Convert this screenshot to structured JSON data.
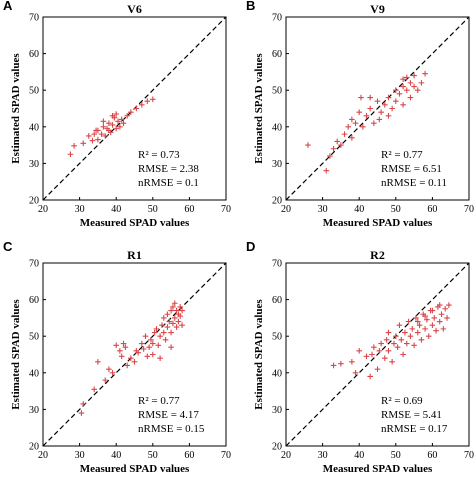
{
  "chart_data": [
    {
      "type": "scatter",
      "panel": "A",
      "title": "V6",
      "xlabel": "Measured SPAD values",
      "ylabel": "Estimated SPAD values",
      "xlim": [
        20,
        70
      ],
      "ylim": [
        20,
        70
      ],
      "xticks": [
        "20",
        "30",
        "40",
        "50",
        "60",
        "70"
      ],
      "yticks": [
        "20",
        "30",
        "40",
        "50",
        "60",
        "70"
      ],
      "reference_line": "1:1 dashed",
      "stats": {
        "r2": "R² = 0.73",
        "rmse": "RMSE = 2.38",
        "nrmse": "nRMSE = 0.1"
      },
      "marker_color": "#d9474a",
      "points": [
        [
          27.5,
          32.5
        ],
        [
          28.5,
          34.8
        ],
        [
          31.0,
          35.5
        ],
        [
          32.5,
          37.5
        ],
        [
          33.5,
          36.2
        ],
        [
          34.0,
          38.0
        ],
        [
          35.0,
          36.5
        ],
        [
          35.0,
          39.0
        ],
        [
          36.0,
          38.0
        ],
        [
          36.5,
          40.0
        ],
        [
          37.0,
          37.5
        ],
        [
          37.5,
          39.5
        ],
        [
          38.0,
          41.0
        ],
        [
          38.5,
          38.5
        ],
        [
          39.0,
          40.5
        ],
        [
          39.5,
          42.5
        ],
        [
          40.0,
          39.5
        ],
        [
          40.0,
          43.5
        ],
        [
          40.5,
          41.5
        ],
        [
          41.0,
          40.0
        ],
        [
          41.5,
          42.0
        ],
        [
          42.0,
          41.0
        ],
        [
          43.0,
          43.0
        ],
        [
          44.0,
          44.0
        ],
        [
          45.5,
          45.0
        ],
        [
          47.0,
          46.0
        ],
        [
          48.5,
          47.0
        ],
        [
          50.0,
          47.5
        ],
        [
          34.5,
          39.0
        ],
        [
          36.5,
          41.5
        ],
        [
          38.0,
          39.0
        ],
        [
          39.0,
          43.0
        ]
      ]
    },
    {
      "type": "scatter",
      "panel": "B",
      "title": "V9",
      "xlabel": "Measured SPAD values",
      "ylabel": "Estimated SPAD values",
      "xlim": [
        20,
        70
      ],
      "ylim": [
        20,
        70
      ],
      "xticks": [
        "20",
        "30",
        "40",
        "50",
        "60",
        "70"
      ],
      "yticks": [
        "20",
        "30",
        "40",
        "50",
        "60",
        "70"
      ],
      "reference_line": "1:1 dashed",
      "stats": {
        "r2": "R² = 0.77",
        "rmse": "RMSE = 6.51",
        "nrmse": "nRMSE = 0.11"
      },
      "marker_color": "#d9474a",
      "points": [
        [
          26.0,
          35.0
        ],
        [
          31.0,
          28.0
        ],
        [
          32.0,
          32.0
        ],
        [
          33.0,
          34.0
        ],
        [
          34.0,
          36.0
        ],
        [
          35.0,
          35.0
        ],
        [
          36.0,
          38.0
        ],
        [
          37.0,
          40.0
        ],
        [
          38.0,
          37.0
        ],
        [
          38.0,
          42.0
        ],
        [
          39.0,
          41.0
        ],
        [
          40.0,
          44.0
        ],
        [
          40.5,
          48.0
        ],
        [
          41.0,
          40.0
        ],
        [
          42.0,
          43.0
        ],
        [
          43.0,
          45.0
        ],
        [
          43.0,
          48.0
        ],
        [
          44.0,
          41.0
        ],
        [
          45.0,
          47.0
        ],
        [
          45.5,
          42.0
        ],
        [
          46.0,
          44.0
        ],
        [
          47.0,
          46.0
        ],
        [
          48.0,
          43.0
        ],
        [
          48.0,
          48.0
        ],
        [
          49.0,
          45.0
        ],
        [
          50.0,
          47.0
        ],
        [
          50.0,
          50.0
        ],
        [
          51.0,
          49.0
        ],
        [
          52.0,
          46.0
        ],
        [
          52.0,
          51.0
        ],
        [
          53.0,
          50.0
        ],
        [
          53.0,
          53.5
        ],
        [
          54.0,
          48.0
        ],
        [
          54.0,
          52.0
        ],
        [
          55.0,
          51.0
        ],
        [
          55.0,
          54.0
        ],
        [
          56.0,
          50.0
        ],
        [
          57.0,
          52.0
        ],
        [
          58.0,
          54.5
        ],
        [
          52.0,
          53.0
        ]
      ]
    },
    {
      "type": "scatter",
      "panel": "C",
      "title": "R1",
      "xlabel": "Measured SPAD values",
      "ylabel": "Estimated SPAD values",
      "xlim": [
        20,
        70
      ],
      "ylim": [
        20,
        70
      ],
      "xticks": [
        "20",
        "30",
        "40",
        "50",
        "60",
        "70"
      ],
      "yticks": [
        "20",
        "30",
        "40",
        "50",
        "60",
        "70"
      ],
      "reference_line": "1:1 dashed",
      "stats": {
        "r2": "R² = 0.77",
        "rmse": "RMSE = 4.17",
        "nrmse": "nRMSE = 0.15"
      },
      "marker_color": "#d9474a",
      "points": [
        [
          30.5,
          29.0
        ],
        [
          31.0,
          31.5
        ],
        [
          34.0,
          35.5
        ],
        [
          35.0,
          43.0
        ],
        [
          37.0,
          38.0
        ],
        [
          38.0,
          41.0
        ],
        [
          39.0,
          40.0
        ],
        [
          40.0,
          47.5
        ],
        [
          41.0,
          46.0
        ],
        [
          41.5,
          44.5
        ],
        [
          42.0,
          48.0
        ],
        [
          42.5,
          47.0
        ],
        [
          43.0,
          42.0
        ],
        [
          44.0,
          44.0
        ],
        [
          45.0,
          43.0
        ],
        [
          45.5,
          46.0
        ],
        [
          46.0,
          45.5
        ],
        [
          47.0,
          48.0
        ],
        [
          47.5,
          46.5
        ],
        [
          48.0,
          50.0
        ],
        [
          48.5,
          44.5
        ],
        [
          49.0,
          47.0
        ],
        [
          49.5,
          49.0
        ],
        [
          50.0,
          48.0
        ],
        [
          50.5,
          51.0
        ],
        [
          51.0,
          52.0
        ],
        [
          51.5,
          47.5
        ],
        [
          52.0,
          50.0
        ],
        [
          52.5,
          53.0
        ],
        [
          53.0,
          51.0
        ],
        [
          53.0,
          55.0
        ],
        [
          53.5,
          49.0
        ],
        [
          54.0,
          52.5
        ],
        [
          54.0,
          56.0
        ],
        [
          54.5,
          54.0
        ],
        [
          55.0,
          51.0
        ],
        [
          55.0,
          57.0
        ],
        [
          55.5,
          53.5
        ],
        [
          55.5,
          58.0
        ],
        [
          56.0,
          55.0
        ],
        [
          56.0,
          59.0
        ],
        [
          56.5,
          52.5
        ],
        [
          56.5,
          57.0
        ],
        [
          57.0,
          54.0
        ],
        [
          57.0,
          56.0
        ],
        [
          57.5,
          58.0
        ],
        [
          57.5,
          55.5
        ],
        [
          58.0,
          57.0
        ],
        [
          58.0,
          53.0
        ],
        [
          52.0,
          44.0
        ],
        [
          55.0,
          47.0
        ],
        [
          50.0,
          45.0
        ]
      ]
    },
    {
      "type": "scatter",
      "panel": "D",
      "title": "R2",
      "xlabel": "Measured SPAD values",
      "ylabel": "Estimated SPAD values",
      "xlim": [
        20,
        70
      ],
      "ylim": [
        20,
        70
      ],
      "xticks": [
        "20",
        "30",
        "40",
        "50",
        "60",
        "70"
      ],
      "yticks": [
        "20",
        "30",
        "40",
        "50",
        "60",
        "70"
      ],
      "reference_line": "1:1 dashed",
      "stats": {
        "r2": "R² = 0.69",
        "rmse": "RMSE = 5.41",
        "nrmse": "nRMSE = 0.17"
      },
      "marker_color": "#d9474a",
      "points": [
        [
          33.0,
          42.0
        ],
        [
          35.0,
          42.5
        ],
        [
          38.0,
          43.0
        ],
        [
          39.0,
          40.0
        ],
        [
          40.0,
          46.0
        ],
        [
          42.0,
          44.5
        ],
        [
          43.0,
          39.0
        ],
        [
          43.5,
          45.0
        ],
        [
          44.0,
          47.0
        ],
        [
          45.0,
          41.0
        ],
        [
          45.5,
          46.0
        ],
        [
          46.0,
          48.0
        ],
        [
          47.0,
          44.0
        ],
        [
          47.5,
          49.0
        ],
        [
          48.0,
          46.0
        ],
        [
          48.0,
          51.0
        ],
        [
          49.0,
          43.0
        ],
        [
          49.5,
          48.0
        ],
        [
          50.0,
          50.0
        ],
        [
          50.5,
          47.0
        ],
        [
          51.0,
          53.0
        ],
        [
          51.5,
          49.0
        ],
        [
          52.0,
          45.0
        ],
        [
          52.5,
          51.0
        ],
        [
          53.0,
          48.0
        ],
        [
          53.5,
          54.0
        ],
        [
          54.0,
          50.0
        ],
        [
          54.5,
          52.0
        ],
        [
          55.0,
          47.5
        ],
        [
          55.5,
          55.0
        ],
        [
          56.0,
          51.0
        ],
        [
          56.5,
          53.0
        ],
        [
          57.0,
          49.0
        ],
        [
          57.5,
          56.0
        ],
        [
          58.0,
          52.0
        ],
        [
          58.5,
          54.5
        ],
        [
          59.0,
          50.0
        ],
        [
          59.5,
          57.0
        ],
        [
          60.0,
          53.0
        ],
        [
          60.5,
          55.0
        ],
        [
          61.0,
          51.5
        ],
        [
          61.5,
          58.0
        ],
        [
          62.0,
          54.0
        ],
        [
          62.5,
          56.0
        ],
        [
          63.0,
          52.0
        ],
        [
          63.5,
          57.5
        ],
        [
          64.0,
          55.0
        ],
        [
          64.5,
          58.5
        ],
        [
          62.0,
          58.5
        ],
        [
          60.0,
          57.0
        ],
        [
          58.0,
          55.5
        ],
        [
          56.0,
          54.0
        ]
      ]
    }
  ]
}
